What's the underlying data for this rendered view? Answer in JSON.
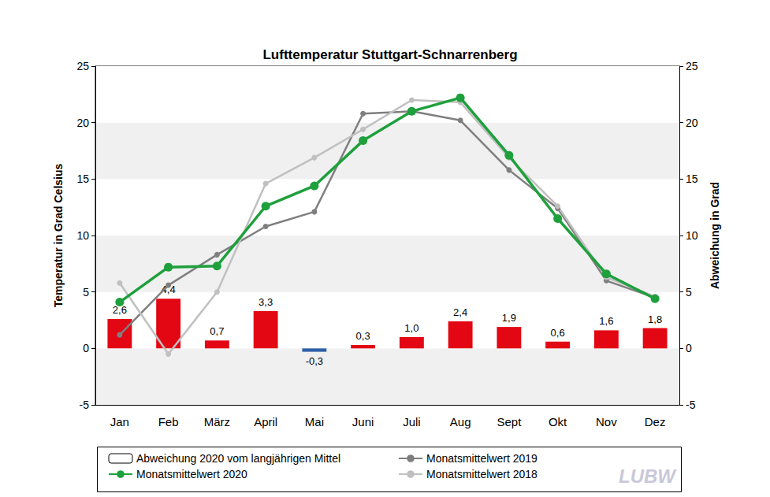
{
  "chart_data": {
    "type": "bar+line",
    "title": "Lufttemperatur Stuttgart-Schnarrenberg",
    "y_label": "Temperatur in Grad Celsius",
    "y2_label": "Abweichung in Grad",
    "categories": [
      "Jan",
      "Feb",
      "März",
      "April",
      "Mai",
      "Juni",
      "Juli",
      "Aug",
      "Sept",
      "Okt",
      "Nov",
      "Dez"
    ],
    "series": [
      {
        "name": "Abweichung 2020 vom langjährigen Mittel",
        "type": "bar",
        "axis": "y2",
        "colors": [
          "#e30613",
          "#e30613",
          "#e30613",
          "#e30613",
          "#2e5fa8",
          "#e30613",
          "#e30613",
          "#e30613",
          "#e30613",
          "#e30613",
          "#e30613",
          "#e30613"
        ],
        "values": [
          2.6,
          4.4,
          0.7,
          3.3,
          -0.3,
          0.3,
          1.0,
          2.4,
          1.9,
          0.6,
          1.6,
          1.8
        ],
        "value_labels": [
          "2,6",
          "4,4",
          "0,7",
          "3,3",
          "-0,3",
          "0,3",
          "1,0",
          "2,4",
          "1,9",
          "0,6",
          "1,6",
          "1,8"
        ],
        "data_labels": true
      },
      {
        "name": "Monatsmittelwert 2019",
        "type": "line",
        "color": "#7f7f7f",
        "marker": "circle",
        "values": [
          1.2,
          5.6,
          8.3,
          10.8,
          12.1,
          20.8,
          21.0,
          20.2,
          15.8,
          12.4,
          6.0,
          4.5
        ]
      },
      {
        "name": "Monatsmittelwert 2020",
        "type": "line",
        "color": "#1ea03c",
        "marker": "circle",
        "values": [
          4.1,
          7.2,
          7.3,
          12.6,
          14.4,
          18.4,
          21.0,
          22.2,
          17.1,
          11.5,
          6.6,
          4.4
        ]
      },
      {
        "name": "Monatsmittelwert 2018",
        "type": "line",
        "color": "#c0c0c0",
        "marker": "circle",
        "values": [
          5.8,
          -0.5,
          5.0,
          14.6,
          16.9,
          19.4,
          22.0,
          21.8,
          16.9,
          12.6,
          6.3,
          4.6
        ]
      }
    ],
    "ylim": [
      -5,
      25
    ],
    "yticks": [
      -5,
      0,
      5,
      10,
      15,
      20,
      25
    ],
    "y2lim": [
      -5,
      25
    ],
    "y2ticks": [
      -5,
      0,
      5,
      10,
      15,
      20,
      25
    ],
    "grid": true,
    "legend": "bottom",
    "annotations": [
      "LUBW"
    ]
  }
}
